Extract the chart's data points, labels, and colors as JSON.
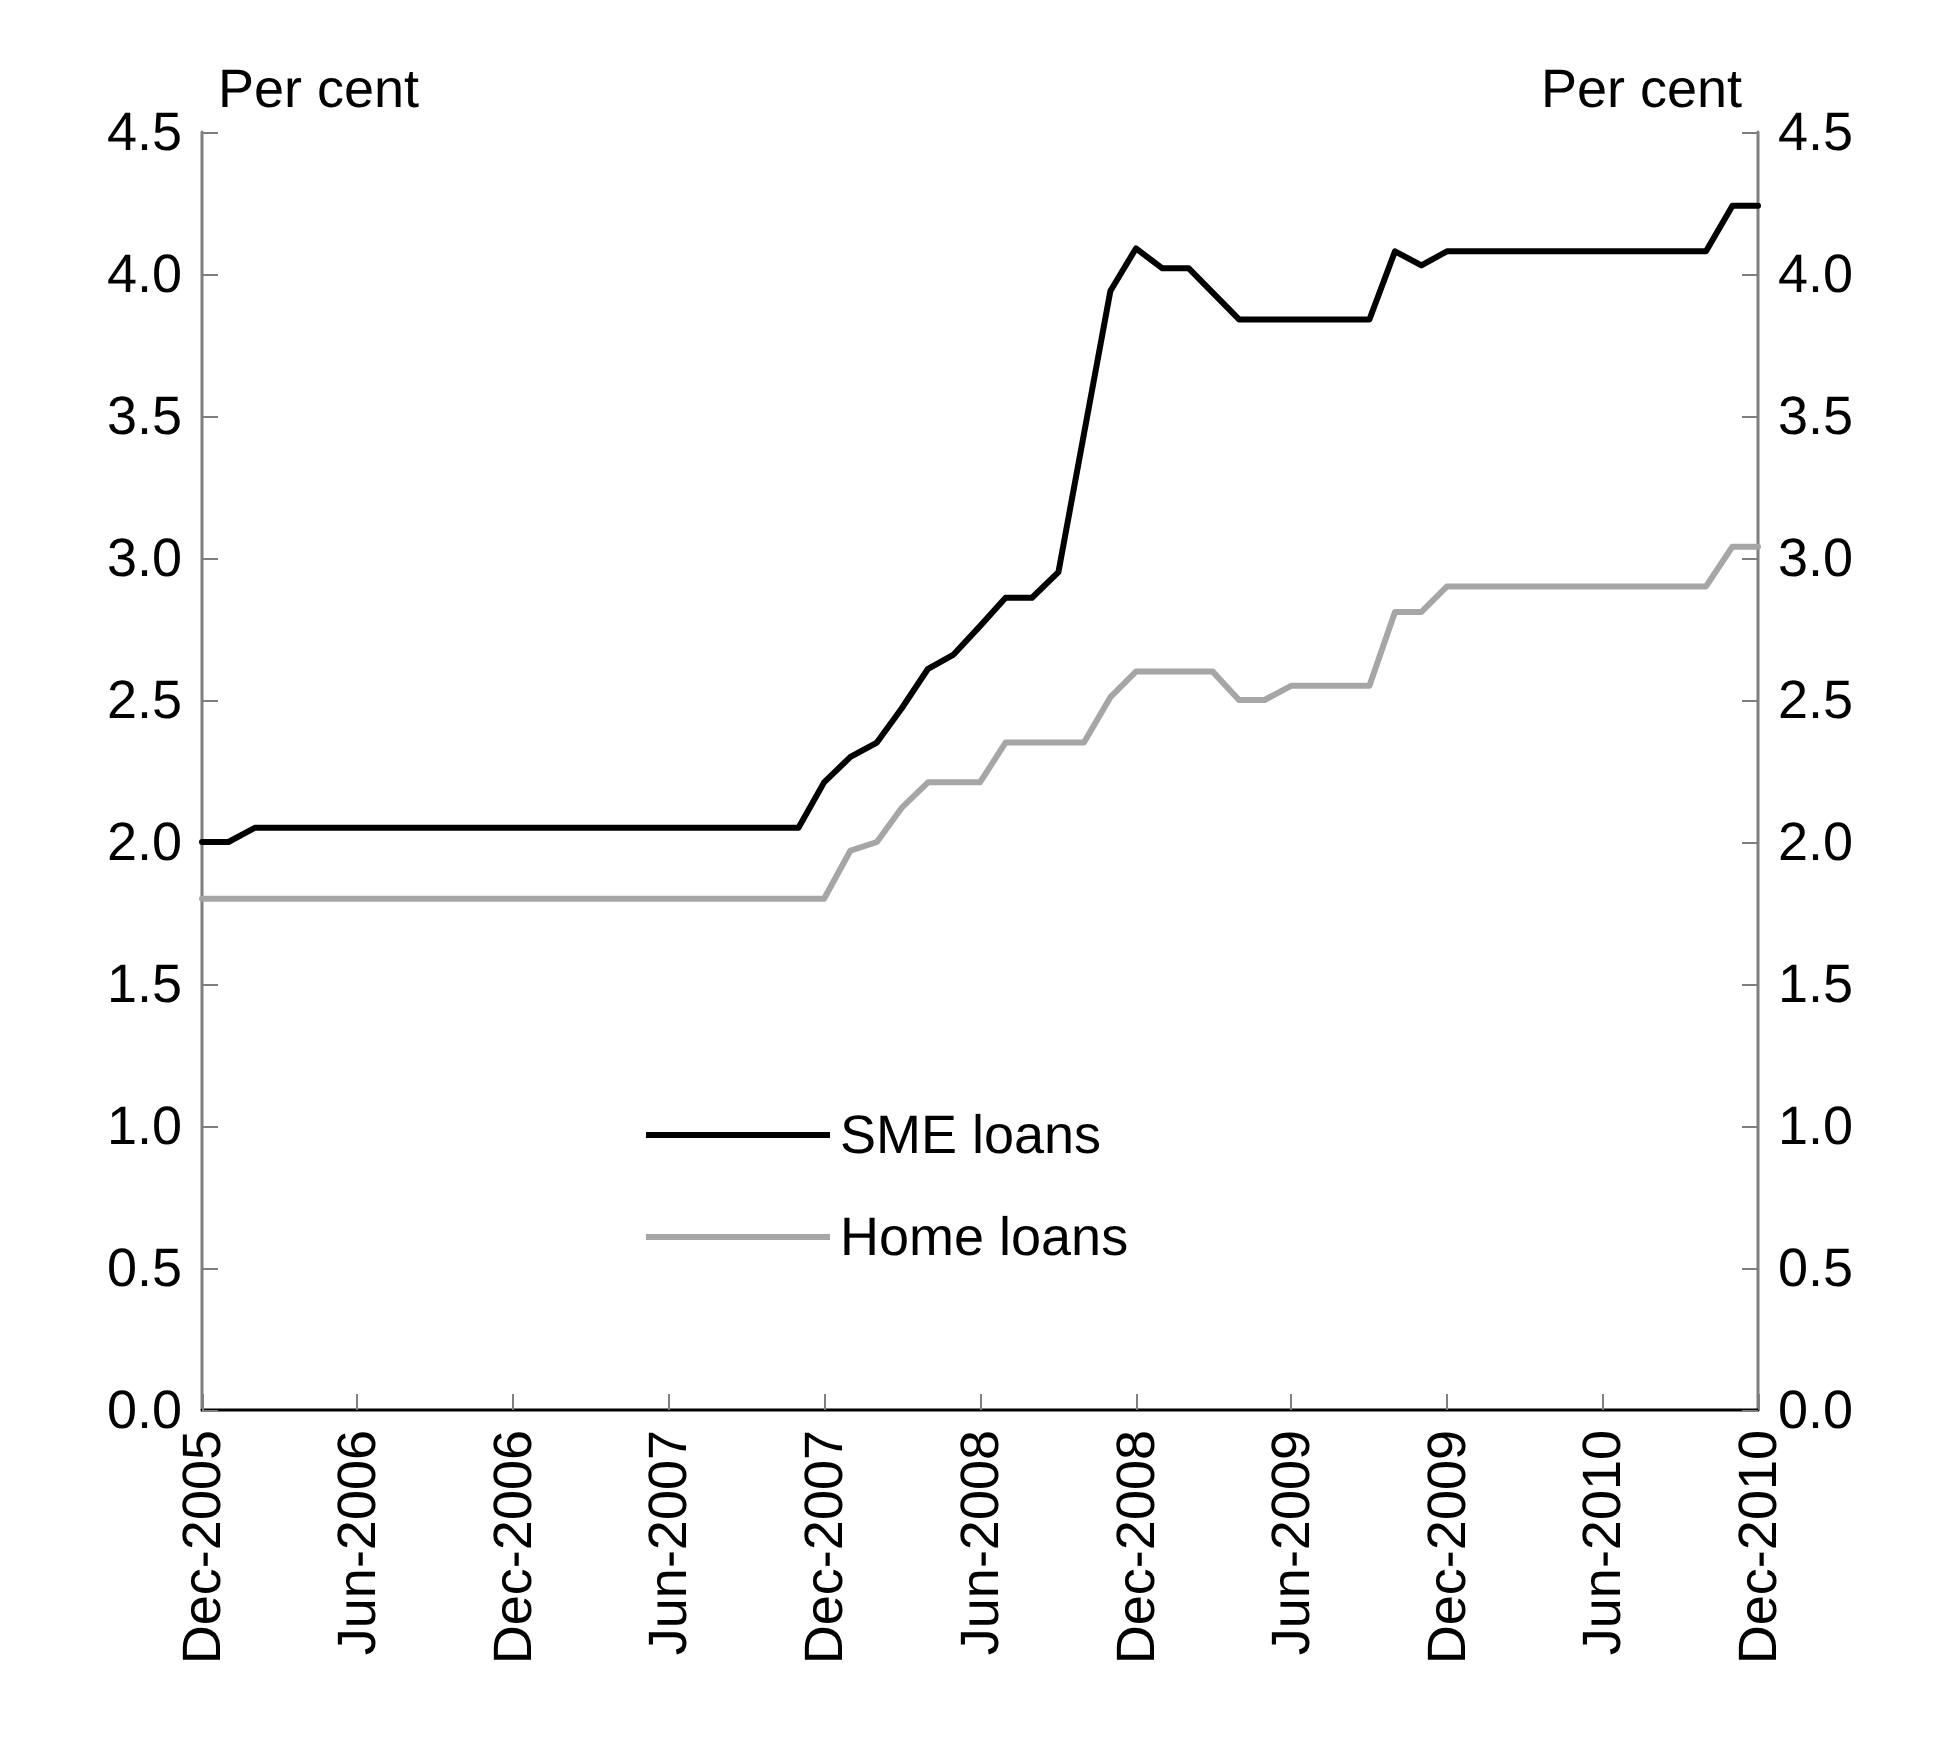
{
  "chart_data": {
    "type": "line",
    "ylabel": "Per cent",
    "y2label": "Per cent",
    "xlim": [
      "2005-12",
      "2010-12"
    ],
    "xticks": [
      {
        "value": "2005-12",
        "label": "Dec-2005"
      },
      {
        "value": "2006-06",
        "label": "Jun-2006"
      },
      {
        "value": "2006-12",
        "label": "Dec-2006"
      },
      {
        "value": "2007-06",
        "label": "Jun-2007"
      },
      {
        "value": "2007-12",
        "label": "Dec-2007"
      },
      {
        "value": "2008-06",
        "label": "Jun-2008"
      },
      {
        "value": "2008-12",
        "label": "Dec-2008"
      },
      {
        "value": "2009-06",
        "label": "Jun-2009"
      },
      {
        "value": "2009-12",
        "label": "Dec-2009"
      },
      {
        "value": "2010-06",
        "label": "Jun-2010"
      },
      {
        "value": "2010-12",
        "label": "Dec-2010"
      }
    ],
    "ylim": [
      0,
      4.5
    ],
    "yticks": [
      {
        "value": 0,
        "label": "0.0"
      },
      {
        "value": 0.5,
        "label": "0.5"
      },
      {
        "value": 1,
        "label": "1.0"
      },
      {
        "value": 1.5,
        "label": "1.5"
      },
      {
        "value": 2,
        "label": "2.0"
      },
      {
        "value": 2.5,
        "label": "2.5"
      },
      {
        "value": 3,
        "label": "3.0"
      },
      {
        "value": 3.5,
        "label": "3.5"
      },
      {
        "value": 4,
        "label": "4.0"
      },
      {
        "value": 4.5,
        "label": "4.5"
      }
    ],
    "y2lim": [
      0,
      4.5
    ],
    "y2ticks": [
      {
        "value": 0,
        "label": "0.0"
      },
      {
        "value": 0.5,
        "label": "0.5"
      },
      {
        "value": 1,
        "label": "1.0"
      },
      {
        "value": 1.5,
        "label": "1.5"
      },
      {
        "value": 2,
        "label": "2.0"
      },
      {
        "value": 2.5,
        "label": "2.5"
      },
      {
        "value": 3,
        "label": "3.0"
      },
      {
        "value": 3.5,
        "label": "3.5"
      },
      {
        "value": 4,
        "label": "4.0"
      },
      {
        "value": 4.5,
        "label": "4.5"
      }
    ],
    "grid": false,
    "legend": "bottom left",
    "line_style": "solid",
    "marker": "none",
    "series": [
      {
        "name": "SME loans",
        "color": "#000000",
        "x": [
          "2005-12",
          "2006-01",
          "2006-02",
          "2007-11",
          "2007-12",
          "2008-01",
          "2008-02",
          "2008-03",
          "2008-04",
          "2008-05",
          "2008-06",
          "2008-07",
          "2008-08",
          "2008-09",
          "2008-11",
          "2008-12",
          "2009-01",
          "2009-02",
          "2009-04",
          "2009-09",
          "2009-10",
          "2009-11",
          "2009-12",
          "2010-10",
          "2010-11",
          "2010-12"
        ],
        "values": [
          2.0,
          2.0,
          2.05,
          2.05,
          2.21,
          2.3,
          2.35,
          2.47,
          2.61,
          2.66,
          2.76,
          2.86,
          2.86,
          2.95,
          3.94,
          4.09,
          4.02,
          4.02,
          3.84,
          3.84,
          4.08,
          4.03,
          4.08,
          4.08,
          4.24,
          4.24
        ]
      },
      {
        "name": "Home loans",
        "color": "#a6a6a6",
        "x": [
          "2005-12",
          "2007-12",
          "2008-01",
          "2008-02",
          "2008-03",
          "2008-04",
          "2008-06",
          "2008-07",
          "2008-10",
          "2008-11",
          "2008-12",
          "2009-03",
          "2009-04",
          "2009-05",
          "2009-06",
          "2009-09",
          "2009-10",
          "2009-11",
          "2009-12",
          "2010-10",
          "2010-11",
          "2010-12"
        ],
        "values": [
          1.8,
          1.8,
          1.97,
          2.0,
          2.12,
          2.21,
          2.21,
          2.35,
          2.35,
          2.51,
          2.6,
          2.6,
          2.5,
          2.5,
          2.55,
          2.55,
          2.81,
          2.81,
          2.9,
          2.9,
          3.04,
          3.04
        ]
      }
    ]
  }
}
